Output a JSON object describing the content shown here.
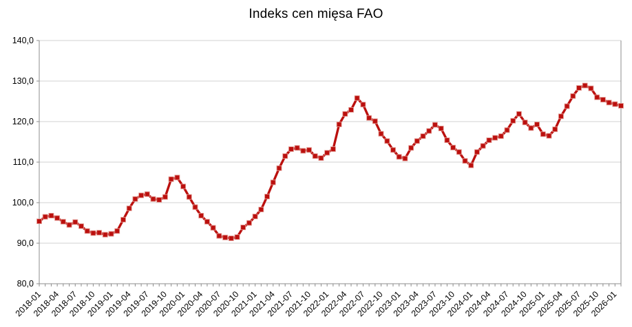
{
  "page": {
    "title": "Indeks cen mięsa FAO"
  },
  "chart_data": {
    "type": "line",
    "title": "Indeks cen mięsa FAO",
    "xlabel": "",
    "ylabel": "",
    "ylim": [
      80,
      140
    ],
    "y_tick_step": 10,
    "y_tick_labels": [
      "80,0",
      "90,0",
      "100,0",
      "110,0",
      "120,0",
      "130,0",
      "140,0"
    ],
    "x_label_every": 3,
    "grid": "horizontal",
    "legend": "none",
    "line_color": "#bb100e",
    "marker": "square",
    "marker_border_color": "#e39c94",
    "axis_color": "#8c8c8c",
    "grid_color": "#d2d2d2",
    "background": "#ffffff",
    "decimal_separator": ",",
    "x": [
      "2018-01",
      "2018-02",
      "2018-03",
      "2018-04",
      "2018-05",
      "2018-06",
      "2018-07",
      "2018-08",
      "2018-09",
      "2018-10",
      "2018-11",
      "2018-12",
      "2019-01",
      "2019-02",
      "2019-03",
      "2019-04",
      "2019-05",
      "2019-06",
      "2019-07",
      "2019-08",
      "2019-09",
      "2019-10",
      "2019-11",
      "2019-12",
      "2020-01",
      "2020-02",
      "2020-03",
      "2020-04",
      "2020-05",
      "2020-06",
      "2020-07",
      "2020-08",
      "2020-09",
      "2020-10",
      "2020-11",
      "2020-12",
      "2021-01",
      "2021-02",
      "2021-03",
      "2021-04",
      "2021-05",
      "2021-06",
      "2021-07",
      "2021-08",
      "2021-09",
      "2021-10",
      "2021-11",
      "2021-12",
      "2022-01",
      "2022-02",
      "2022-03",
      "2022-04",
      "2022-05",
      "2022-06",
      "2022-07",
      "2022-08",
      "2022-09",
      "2022-10",
      "2022-11",
      "2022-12",
      "2023-01",
      "2023-02",
      "2023-03",
      "2023-04",
      "2023-05",
      "2023-06",
      "2023-07",
      "2023-08",
      "2023-09",
      "2023-10",
      "2023-11",
      "2023-12",
      "2024-01",
      "2024-02",
      "2024-03",
      "2024-04",
      "2024-05",
      "2024-06",
      "2024-07",
      "2024-08",
      "2024-09",
      "2024-10",
      "2024-11",
      "2024-12",
      "2025-01",
      "2025-02",
      "2025-03",
      "2025-04",
      "2025-05",
      "2025-06",
      "2025-07",
      "2025-08",
      "2025-09",
      "2025-10",
      "2025-11",
      "2025-12",
      "2026-01",
      "2026-02"
    ],
    "series": [
      {
        "name": "Indeks cen mięsa FAO",
        "values": [
          95.4,
          96.5,
          96.8,
          96.2,
          95.3,
          94.5,
          95.2,
          94.2,
          93.0,
          92.5,
          92.6,
          92.1,
          92.3,
          93.0,
          95.8,
          98.6,
          100.9,
          101.8,
          102.1,
          100.9,
          100.7,
          101.4,
          105.8,
          106.2,
          104.0,
          101.4,
          98.9,
          96.8,
          95.3,
          93.8,
          91.8,
          91.4,
          91.2,
          91.5,
          93.9,
          95.0,
          96.6,
          98.3,
          101.5,
          105.0,
          108.5,
          111.5,
          113.2,
          113.5,
          112.8,
          113.0,
          111.5,
          111.0,
          112.3,
          113.2,
          119.3,
          121.9,
          122.9,
          125.8,
          124.2,
          120.9,
          120.1,
          117.0,
          115.2,
          113.0,
          111.3,
          110.9,
          113.5,
          115.2,
          116.4,
          117.7,
          119.2,
          118.3,
          115.4,
          113.6,
          112.5,
          110.3,
          109.2,
          112.5,
          114.0,
          115.4,
          116.0,
          116.4,
          117.9,
          120.2,
          121.9,
          119.8,
          118.4,
          119.3,
          116.9,
          116.5,
          118.1,
          121.3,
          123.8,
          126.3,
          128.3,
          128.9,
          128.2,
          126.0,
          125.4,
          124.7,
          124.3,
          123.9
        ]
      }
    ]
  }
}
